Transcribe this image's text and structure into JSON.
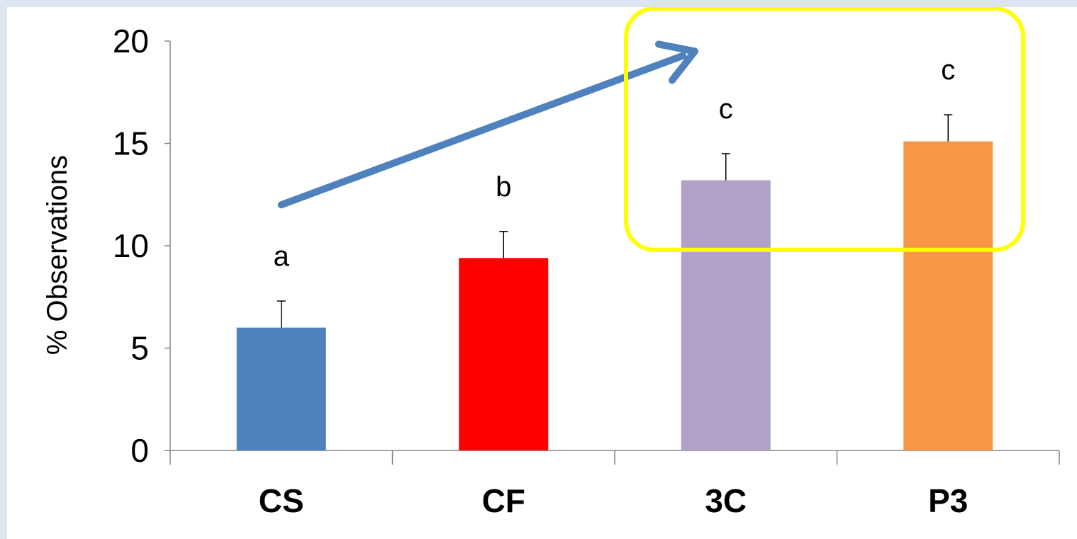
{
  "chart_data": {
    "type": "bar",
    "categories": [
      "CS",
      "CF",
      "3C",
      "P3"
    ],
    "values": [
      6.0,
      9.4,
      13.2,
      15.1
    ],
    "error_bars": [
      1.3,
      1.3,
      1.3,
      1.3
    ],
    "significance_letters": [
      "a",
      "b",
      "c",
      "c"
    ],
    "bar_colors": [
      "#4f81bd",
      "#ff0000",
      "#b1a0c7",
      "#f79646"
    ],
    "ylabel": "% Observations",
    "ylim": [
      0,
      20
    ],
    "yticks": [
      0,
      5,
      10,
      15,
      20
    ],
    "grid": false,
    "legend": "none",
    "annotations": {
      "trend_arrow_color": "#4f81bd",
      "highlight_box_color": "#ffff00",
      "highlighted_categories": [
        "3C",
        "P3"
      ]
    }
  }
}
